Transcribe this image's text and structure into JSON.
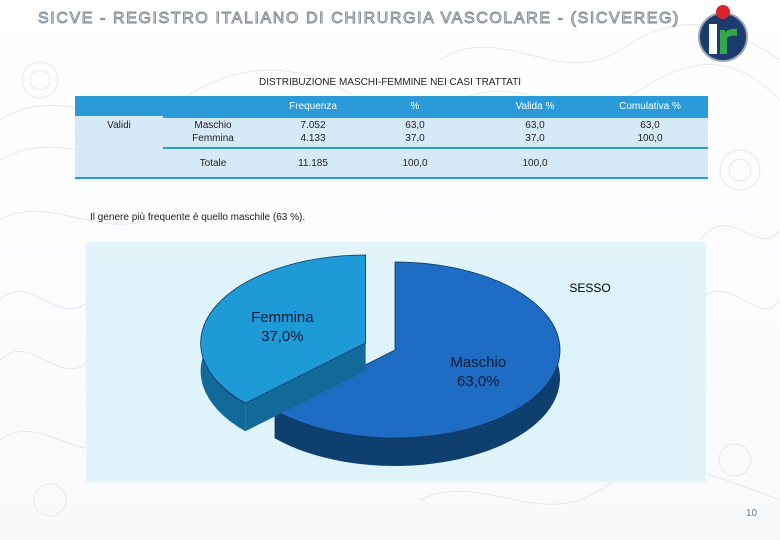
{
  "header": {
    "title": "SICVE - REGISTRO ITALIANO DI CHIRURGIA VASCOLARE -  (SICVEREG)"
  },
  "logo": {
    "letter": "r"
  },
  "table": {
    "title": "DISTRIBUZIONE MASCHI-FEMMINE NEI CASI TRATTATI",
    "columns": [
      "Frequenza",
      "%",
      "Valida %",
      "Cumulativa %"
    ],
    "group_label": "Validi",
    "rows": [
      {
        "label": "Maschio",
        "freq": "7.052",
        "pct": "63,0",
        "valid": "63,0",
        "cum": "63,0"
      },
      {
        "label": "Femmina",
        "freq": "4.133",
        "pct": "37,0",
        "valid": "37,0",
        "cum": "100,0"
      }
    ],
    "total": {
      "label": "Totale",
      "freq": "11.185",
      "pct": "100,0",
      "valid": "100,0",
      "cum": ""
    }
  },
  "note": "Il genere più frequente è quello maschile (63 %).",
  "chart_data": {
    "type": "pie",
    "title": "SESSO",
    "slices": [
      {
        "label": "Maschio",
        "value": 63.0,
        "display": "63,0%",
        "color": "#1f6cc4",
        "side_color": "#0f3f6f"
      },
      {
        "label": "Femmina",
        "value": 37.0,
        "display": "37,0%",
        "color": "#1e9ad6",
        "side_color": "#126a9a"
      }
    ],
    "exploded": "Femmina",
    "style": "3d"
  },
  "page": {
    "number": "10"
  }
}
